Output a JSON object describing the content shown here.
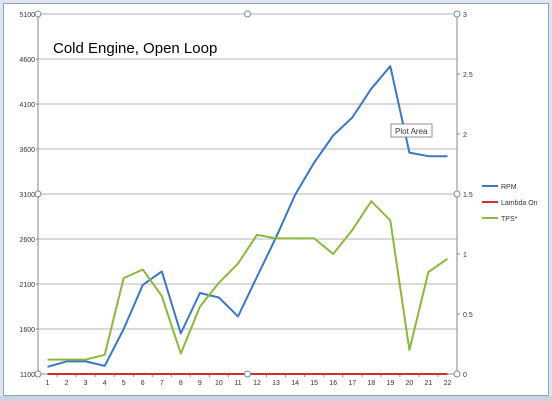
{
  "chart_data": {
    "type": "line",
    "title": "Cold Engine, Open Loop",
    "x": [
      1,
      2,
      3,
      4,
      5,
      6,
      7,
      8,
      9,
      10,
      11,
      12,
      13,
      14,
      15,
      16,
      17,
      18,
      19,
      20,
      21,
      22
    ],
    "y_left_ticks": [
      "5100",
      "4600",
      "4100",
      "3600",
      "3100",
      "2600",
      "2100",
      "1600",
      "1100"
    ],
    "y_right_ticks": [
      "3",
      "2.5",
      "2",
      "1.5",
      "1",
      "0.5",
      "0"
    ],
    "y_left_range": [
      1100,
      5100
    ],
    "y_right_range": [
      0,
      3
    ],
    "grid": true,
    "legend_position": "right",
    "series": [
      {
        "name": "RPM",
        "axis": "left",
        "color": "#3a78c2",
        "values": [
          1180,
          1240,
          1240,
          1190,
          1600,
          2090,
          2240,
          1550,
          2000,
          1950,
          1740,
          2180,
          2620,
          3090,
          3450,
          3750,
          3950,
          4270,
          4520,
          3560,
          3520,
          3520
        ]
      },
      {
        "name": "Lambda On",
        "axis": "left",
        "color": "#d0302a",
        "values": [
          1100,
          1100,
          1100,
          1100,
          1100,
          1100,
          1100,
          1100,
          1100,
          1100,
          1100,
          1100,
          1100,
          1100,
          1100,
          1100,
          1100,
          1100,
          1100,
          1100,
          1100,
          1100
        ]
      },
      {
        "name": "TPS*",
        "axis": "right",
        "color": "#8cb83c",
        "values": [
          0.12,
          0.12,
          0.12,
          0.16,
          0.8,
          0.87,
          0.65,
          0.17,
          0.56,
          0.76,
          0.92,
          1.16,
          1.13,
          1.13,
          1.13,
          1.0,
          1.2,
          1.44,
          1.28,
          0.2,
          0.85,
          0.96
        ]
      }
    ]
  },
  "tooltip": {
    "label": "Plot Area"
  }
}
